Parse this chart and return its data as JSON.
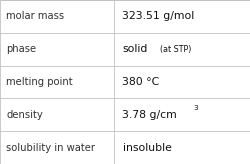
{
  "rows": [
    {
      "label": "molar mass",
      "value": "323.51 g/mol",
      "superscript": null,
      "small_suffix": null
    },
    {
      "label": "phase",
      "value": "solid",
      "superscript": null,
      "small_suffix": "(at STP)"
    },
    {
      "label": "melting point",
      "value": "380 °C",
      "superscript": null,
      "small_suffix": null
    },
    {
      "label": "density",
      "value": "3.78 g/cm",
      "superscript": "3",
      "small_suffix": null
    },
    {
      "label": "solubility in water",
      "value": "insoluble",
      "superscript": null,
      "small_suffix": null
    }
  ],
  "col_split": 0.455,
  "background_color": "#ffffff",
  "border_color": "#c0c0c0",
  "label_fontsize": 7.2,
  "value_fontsize": 7.8,
  "small_fontsize": 5.8,
  "super_fontsize": 5.2,
  "label_color": "#333333",
  "value_color": "#111111"
}
